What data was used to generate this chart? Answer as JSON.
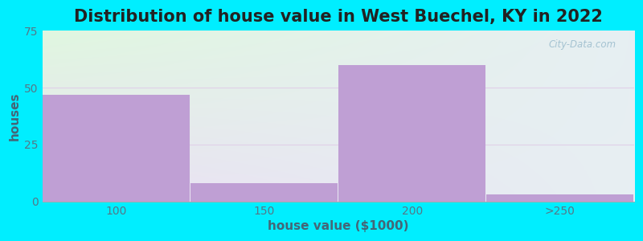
{
  "title": "Distribution of house value in West Buechel, KY in 2022",
  "xlabel": "house value ($1000)",
  "ylabel": "houses",
  "categories": [
    "100",
    "150",
    "200",
    ">250"
  ],
  "values": [
    47,
    8,
    60,
    3
  ],
  "bar_color": "#bf9fd4",
  "bar_edge_color": "#bf9fd4",
  "ylim": [
    0,
    75
  ],
  "yticks": [
    0,
    25,
    50,
    75
  ],
  "background_color": "#00eeff",
  "title_fontsize": 15,
  "axis_label_fontsize": 11,
  "watermark": "City-Data.com",
  "plot_bg_topleft": [
    0.878,
    0.969,
    0.878
  ],
  "plot_bg_topright": [
    0.906,
    0.937,
    0.953
  ],
  "plot_bg_botleft": [
    0.918,
    0.875,
    0.953
  ],
  "plot_bg_botright": [
    0.906,
    0.937,
    0.953
  ]
}
